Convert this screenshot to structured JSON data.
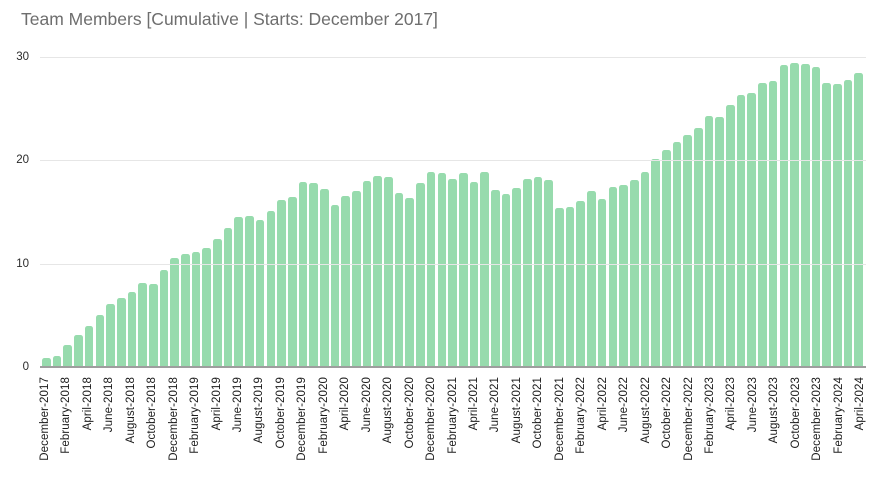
{
  "title": "Team Members [Cumulative | Starts: December 2017]",
  "colors": {
    "bar_fill": "#97dbad",
    "gridline": "#e6e6e6",
    "baseline": "#9e9e9e",
    "title_text": "#6e6e6e",
    "axis_text": "#1c1c1c",
    "background": "#ffffff"
  },
  "chart_data": {
    "type": "bar",
    "title": "Team Members [Cumulative | Starts: December 2017]",
    "xlabel": "",
    "ylabel": "",
    "ylim": [
      0,
      30
    ],
    "yticks": [
      0,
      10,
      20,
      30
    ],
    "grid": true,
    "legend": "none",
    "x_tick_rotation": 90,
    "x_ticks_shown_every": 2,
    "categories": [
      "December-2017",
      "January-2018",
      "February-2018",
      "March-2018",
      "April-2018",
      "May-2018",
      "June-2018",
      "July-2018",
      "August-2018",
      "September-2018",
      "October-2018",
      "November-2018",
      "December-2018",
      "January-2019",
      "February-2019",
      "March-2019",
      "April-2019",
      "May-2019",
      "June-2019",
      "July-2019",
      "August-2019",
      "September-2019",
      "October-2019",
      "November-2019",
      "December-2019",
      "January-2020",
      "February-2020",
      "March-2020",
      "April-2020",
      "May-2020",
      "June-2020",
      "July-2020",
      "August-2020",
      "September-2020",
      "October-2020",
      "November-2020",
      "December-2020",
      "January-2021",
      "February-2021",
      "March-2021",
      "April-2021",
      "May-2021",
      "June-2021",
      "July-2021",
      "August-2021",
      "September-2021",
      "October-2021",
      "November-2021",
      "December-2021",
      "January-2022",
      "February-2022",
      "March-2022",
      "April-2022",
      "May-2022",
      "June-2022",
      "July-2022",
      "August-2022",
      "September-2022",
      "October-2022",
      "November-2022",
      "December-2022",
      "January-2023",
      "February-2023",
      "March-2023",
      "April-2023",
      "May-2023",
      "June-2023",
      "July-2023",
      "August-2023",
      "September-2023",
      "October-2023",
      "November-2023",
      "December-2023",
      "January-2024",
      "February-2024",
      "March-2024",
      "April-2024"
    ],
    "values": [
      0.9,
      1.1,
      2.1,
      3.1,
      4.0,
      5.0,
      6.1,
      6.7,
      7.3,
      8.1,
      8.0,
      9.4,
      10.6,
      10.9,
      11.1,
      11.5,
      12.4,
      13.5,
      14.5,
      14.6,
      14.2,
      15.1,
      16.2,
      16.5,
      17.9,
      17.8,
      17.2,
      15.7,
      16.6,
      17.0,
      18.0,
      18.5,
      18.4,
      16.8,
      16.4,
      17.8,
      18.9,
      18.8,
      18.2,
      18.8,
      17.9,
      18.9,
      17.1,
      16.7,
      17.3,
      18.2,
      18.4,
      18.1,
      15.4,
      15.5,
      16.1,
      17.0,
      16.3,
      17.4,
      17.6,
      18.1,
      18.9,
      20.1,
      21.0,
      21.8,
      22.5,
      23.1,
      24.3,
      24.2,
      25.4,
      26.3,
      26.5,
      27.5,
      27.7,
      29.2,
      29.4,
      29.3,
      29.0,
      27.5,
      27.4,
      27.8,
      28.5
    ]
  }
}
